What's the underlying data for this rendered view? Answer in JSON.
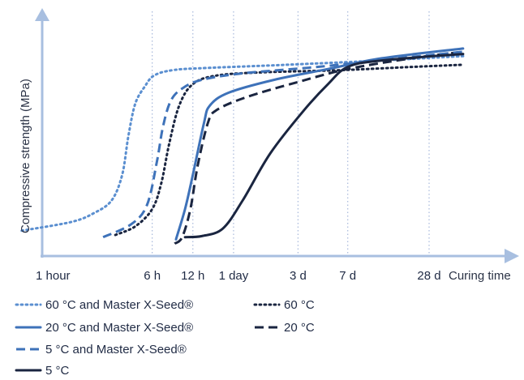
{
  "colors": {
    "axis": "#a8bfe0",
    "gridline": "#a7b8db",
    "blue": "#3e72b9",
    "light_blue": "#5b8fd0",
    "dark": "#1a2540"
  },
  "chart_data": {
    "type": "line",
    "title": "",
    "xlabel": "Curing time",
    "ylabel": "Compressive strength (MPa)",
    "x_scale": "log",
    "x_ticks": [
      {
        "label": "1 hour",
        "hours": 1
      },
      {
        "label": "6 h",
        "hours": 6
      },
      {
        "label": "12 h",
        "hours": 12
      },
      {
        "label": "1 day",
        "hours": 24
      },
      {
        "label": "3 d",
        "hours": 72
      },
      {
        "label": "7 d",
        "hours": 168
      },
      {
        "label": "28 d",
        "hours": 672
      }
    ],
    "gridlines_at_hours": [
      6,
      12,
      24,
      72,
      168,
      672
    ],
    "xlim_hours": [
      0.6,
      1500
    ],
    "ylim": [
      0,
      100
    ],
    "y_ticks_shown": false,
    "legend_position": "bottom",
    "series": [
      {
        "name": "60 °C and Master X-Seed®",
        "color_key": "light_blue",
        "style": "dotted",
        "points": [
          [
            0.65,
            8
          ],
          [
            1.5,
            12
          ],
          [
            2.2,
            16
          ],
          [
            3,
            22
          ],
          [
            3.6,
            34
          ],
          [
            4,
            52
          ],
          [
            4.5,
            67
          ],
          [
            5.3,
            75
          ],
          [
            6.2,
            80
          ],
          [
            8.5,
            82.5
          ],
          [
            15,
            83.5
          ],
          [
            60,
            85
          ],
          [
            300,
            87
          ],
          [
            1200,
            89
          ]
        ]
      },
      {
        "name": "60 °C",
        "color_key": "dark",
        "style": "dotted",
        "points": [
          [
            3.2,
            6
          ],
          [
            4.5,
            10
          ],
          [
            6,
            18
          ],
          [
            7,
            30
          ],
          [
            8,
            48
          ],
          [
            9.5,
            66
          ],
          [
            12,
            76
          ],
          [
            18,
            80
          ],
          [
            40,
            81.5
          ],
          [
            150,
            82.5
          ],
          [
            500,
            84
          ],
          [
            1200,
            85
          ]
        ]
      },
      {
        "name": "20 °C and Master X-Seed®",
        "color_key": "blue",
        "style": "solid",
        "points": [
          [
            9,
            4
          ],
          [
            10.5,
            18
          ],
          [
            12,
            34
          ],
          [
            14.5,
            58
          ],
          [
            16,
            66
          ],
          [
            22,
            72
          ],
          [
            48,
            78
          ],
          [
            120,
            83
          ],
          [
            300,
            88
          ],
          [
            1200,
            92.5
          ]
        ]
      },
      {
        "name": "20 °C",
        "color_key": "dark",
        "style": "dashed",
        "points": [
          [
            8.8,
            2
          ],
          [
            10,
            5
          ],
          [
            11.5,
            18
          ],
          [
            13,
            38
          ],
          [
            15.5,
            58
          ],
          [
            18,
            64
          ],
          [
            30,
            70
          ],
          [
            72,
            77
          ],
          [
            168,
            83
          ],
          [
            500,
            88
          ],
          [
            1200,
            91
          ]
        ]
      },
      {
        "name": "5 °C and Master X-Seed®",
        "color_key": "blue",
        "style": "dashed",
        "points": [
          [
            2.6,
            5
          ],
          [
            4.2,
            11
          ],
          [
            5.5,
            20
          ],
          [
            6.5,
            40
          ],
          [
            7.2,
            56
          ],
          [
            8.2,
            68
          ],
          [
            10,
            74
          ],
          [
            14,
            78
          ],
          [
            28,
            81
          ],
          [
            100,
            84
          ],
          [
            400,
            88
          ],
          [
            1200,
            91
          ]
        ]
      },
      {
        "name": "5 °C",
        "color_key": "dark",
        "style": "solid",
        "points": [
          [
            10.5,
            5
          ],
          [
            14,
            5.5
          ],
          [
            20,
            9
          ],
          [
            28,
            22
          ],
          [
            45,
            44
          ],
          [
            80,
            64
          ],
          [
            120,
            76
          ],
          [
            168,
            84
          ],
          [
            300,
            87
          ],
          [
            1200,
            90
          ]
        ]
      }
    ]
  }
}
